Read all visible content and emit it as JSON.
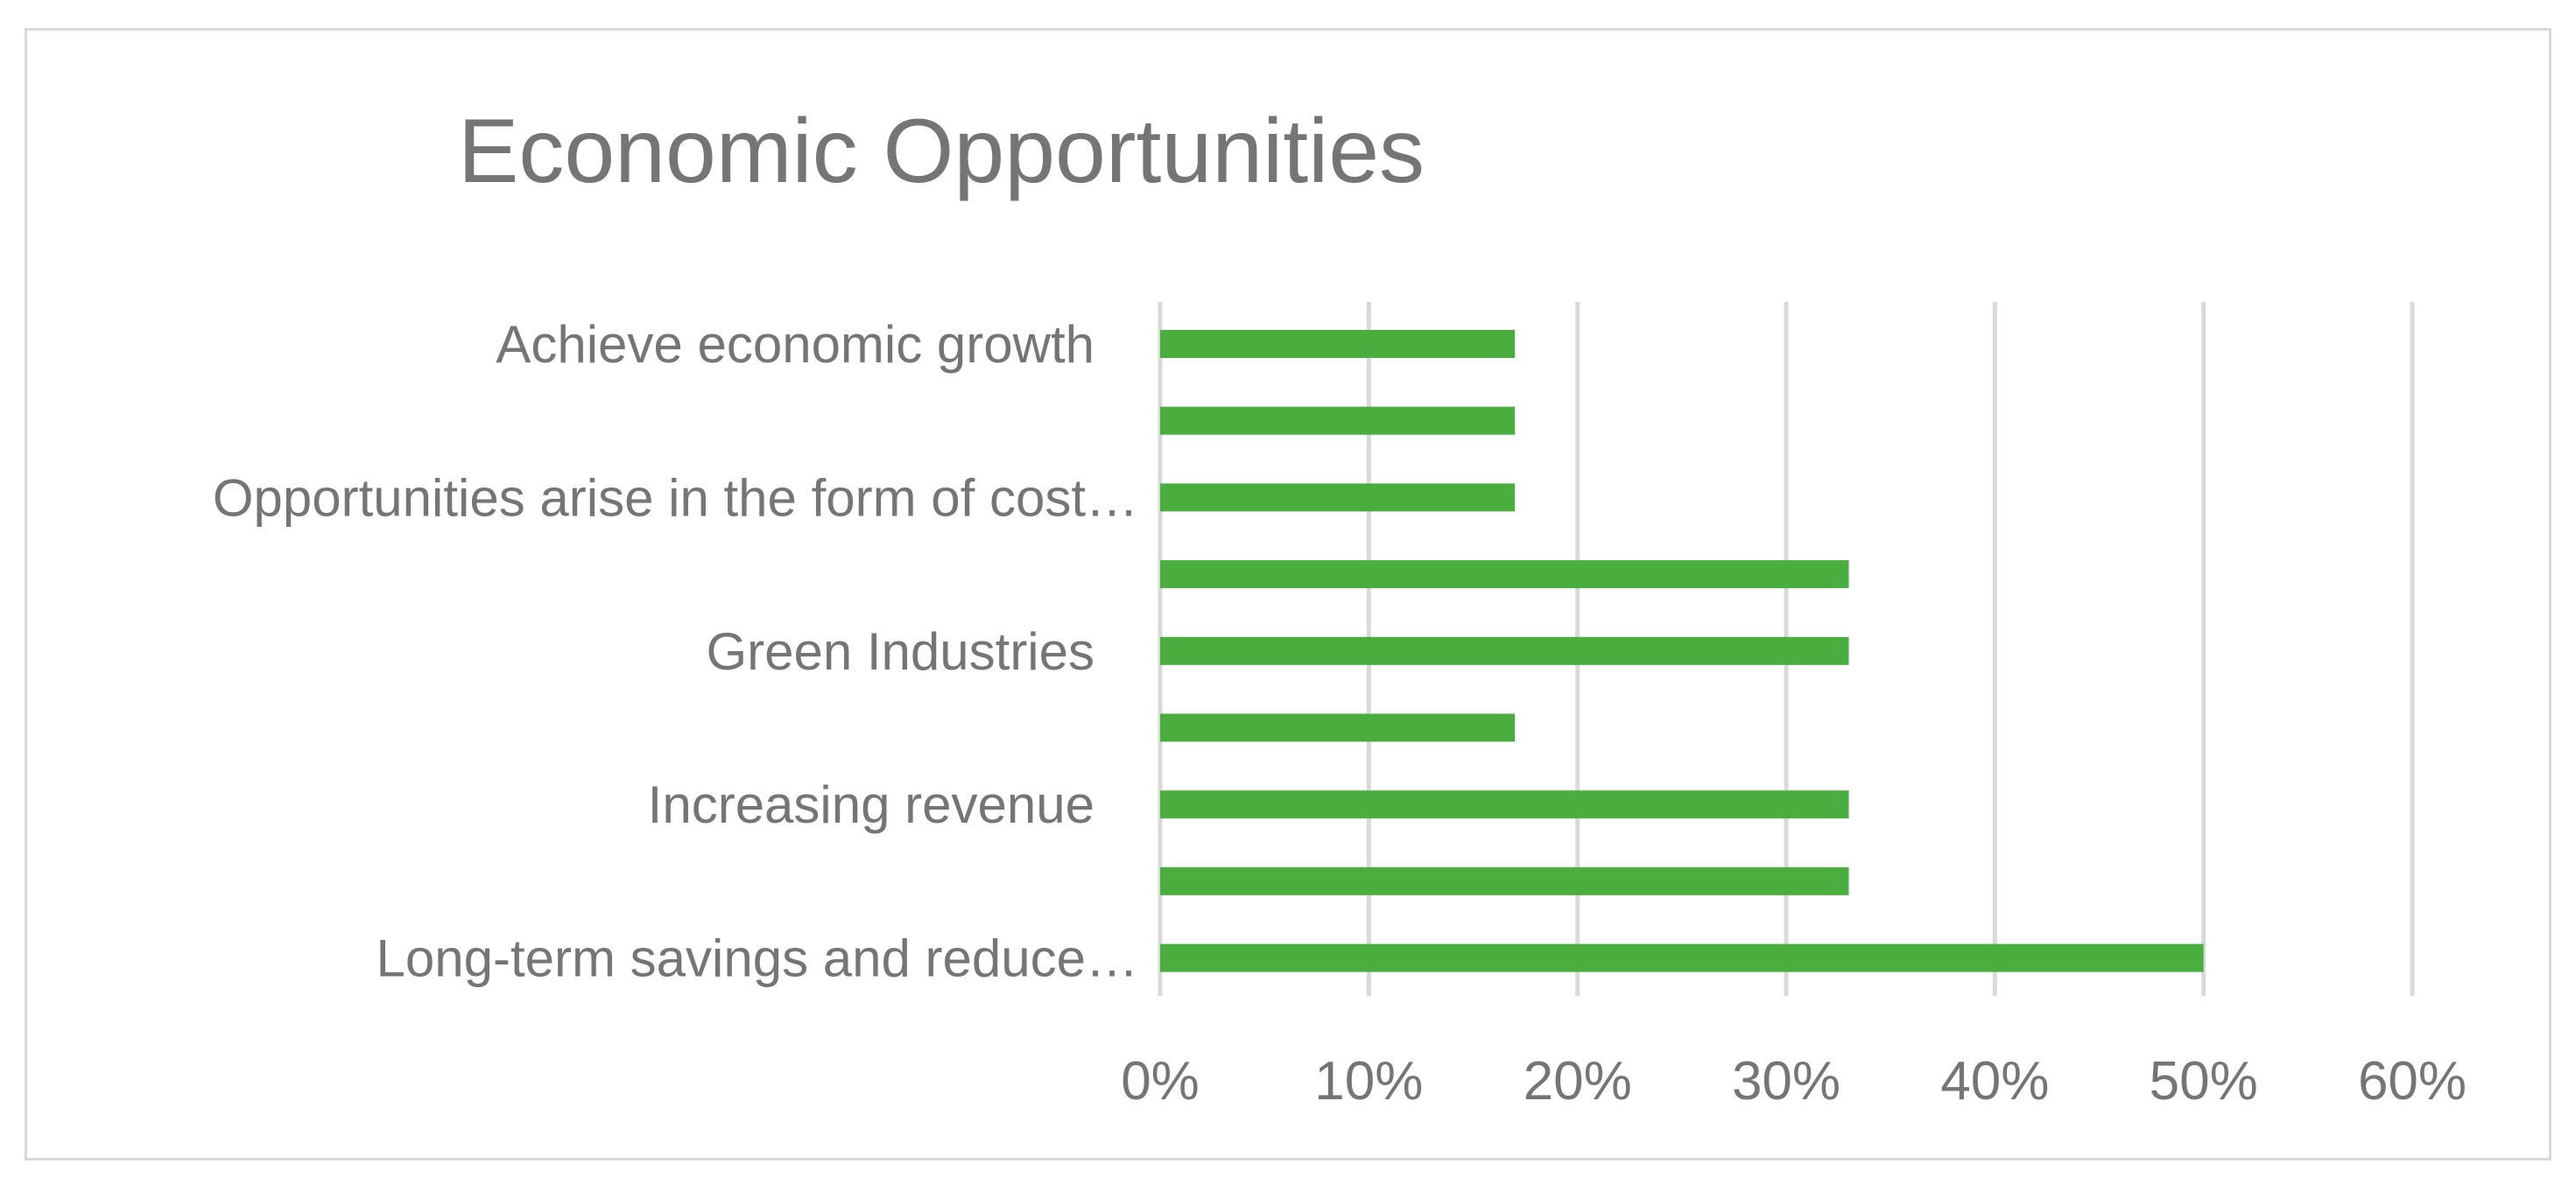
{
  "chart_data": {
    "type": "bar",
    "orientation": "horizontal",
    "title": "Economic Opportunities",
    "xlabel": "",
    "ylabel": "",
    "categories": [
      "Achieve economic growth",
      "",
      "Opportunities arise in the form of cost…",
      "",
      "Green Industries",
      "",
      "Increasing revenue",
      "",
      "Long-term savings and reduce…"
    ],
    "values": [
      0.17,
      0.17,
      0.17,
      0.33,
      0.33,
      0.17,
      0.33,
      0.33,
      0.5
    ],
    "xlim": [
      0,
      0.6
    ],
    "xticks": [
      "0%",
      "10%",
      "20%",
      "30%",
      "40%",
      "50%",
      "60%"
    ],
    "grid": true,
    "legend": "none",
    "colors": {
      "bar": "#4AAE3E",
      "grid": "#d9d9d9",
      "text": "#757575"
    }
  }
}
